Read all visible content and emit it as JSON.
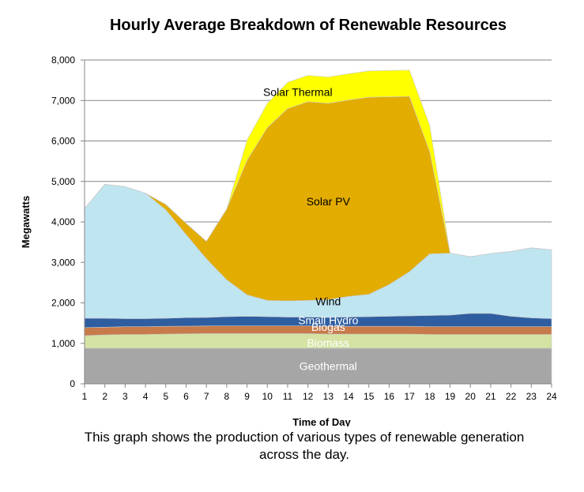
{
  "chart_data": {
    "type": "area",
    "title": "Hourly Average Breakdown of Renewable Resources",
    "xlabel": "Time of Day",
    "ylabel": "Megawatts",
    "stacked": true,
    "x": [
      1,
      2,
      3,
      4,
      5,
      6,
      7,
      8,
      9,
      10,
      11,
      12,
      13,
      14,
      15,
      16,
      17,
      18,
      19,
      20,
      21,
      22,
      23,
      24
    ],
    "ylim": [
      0,
      8000
    ],
    "yticks": [
      0,
      1000,
      2000,
      3000,
      4000,
      5000,
      6000,
      7000,
      8000
    ],
    "ytick_labels": [
      "0",
      "1,000",
      "2,000",
      "3,000",
      "4,000",
      "5,000",
      "6,000",
      "7,000",
      "8,000"
    ],
    "grid": true,
    "legend": "inline labels",
    "series": [
      {
        "name": "Geothermal",
        "color": "#a6a6a6",
        "label_color": "#ffffff",
        "values": [
          880,
          880,
          880,
          880,
          880,
          880,
          880,
          880,
          880,
          880,
          880,
          880,
          880,
          880,
          880,
          880,
          880,
          880,
          880,
          880,
          880,
          880,
          880,
          880
        ]
      },
      {
        "name": "Biomass",
        "color": "#d4e3a3",
        "label_color": "#ffffff",
        "values": [
          310,
          330,
          340,
          340,
          350,
          355,
          360,
          360,
          360,
          360,
          360,
          360,
          350,
          350,
          350,
          350,
          350,
          340,
          340,
          340,
          340,
          340,
          340,
          340
        ]
      },
      {
        "name": "Biogas",
        "color": "#c77b4a",
        "label_color": "#ffffff",
        "values": [
          200,
          190,
          190,
          190,
          190,
          190,
          190,
          190,
          190,
          190,
          190,
          190,
          190,
          190,
          190,
          190,
          190,
          190,
          190,
          190,
          190,
          190,
          190,
          190
        ]
      },
      {
        "name": "Small Hydro",
        "color": "#2e5da0",
        "label_color": "#ffffff",
        "values": [
          230,
          220,
          200,
          200,
          200,
          210,
          210,
          230,
          240,
          230,
          220,
          220,
          220,
          230,
          240,
          250,
          260,
          280,
          290,
          330,
          330,
          260,
          220,
          200
        ]
      },
      {
        "name": "Wind",
        "color": "#bfe5f1",
        "label_color": "#000000",
        "values": [
          2710,
          3310,
          3260,
          3100,
          2680,
          2050,
          1450,
          910,
          530,
          400,
          400,
          410,
          440,
          510,
          550,
          780,
          1090,
          1520,
          1530,
          1400,
          1480,
          1600,
          1730,
          1700
        ]
      },
      {
        "name": "Solar PV",
        "color": "#e3ac00",
        "label_color": "#000000",
        "values": [
          0,
          0,
          0,
          0,
          130,
          280,
          430,
          1750,
          3320,
          4270,
          4750,
          4910,
          4850,
          4850,
          4870,
          4640,
          4330,
          2520,
          0,
          0,
          0,
          0,
          0,
          0
        ]
      },
      {
        "name": "Solar Thermal",
        "color": "#ffff00",
        "label_color": "#000000",
        "values": [
          0,
          0,
          0,
          0,
          0,
          0,
          0,
          0,
          500,
          600,
          650,
          650,
          650,
          650,
          650,
          650,
          650,
          650,
          0,
          0,
          0,
          0,
          0,
          0
        ]
      }
    ]
  },
  "caption": "This graph shows the production of various types of renewable generation across the day."
}
